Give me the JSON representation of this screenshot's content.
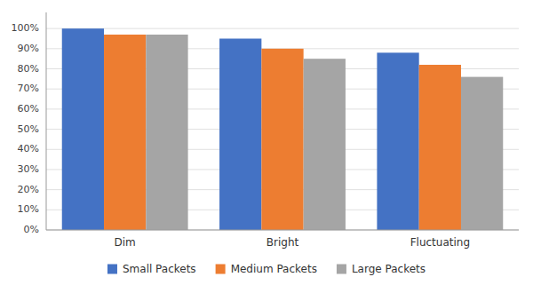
{
  "chart_data": {
    "type": "bar",
    "categories": [
      "Dim",
      "Bright",
      "Fluctuating"
    ],
    "series": [
      {
        "name": "Small Packets",
        "color": "#4472C4",
        "values": [
          1.0,
          0.95,
          0.88
        ]
      },
      {
        "name": "Medium Packets",
        "color": "#ED7D31",
        "values": [
          0.97,
          0.9,
          0.82
        ]
      },
      {
        "name": "Large Packets",
        "color": "#A5A5A5",
        "values": [
          0.97,
          0.85,
          0.76
        ]
      }
    ],
    "ylim": [
      0,
      1.08
    ],
    "yticks": [
      {
        "value": 0.0,
        "label": "0%"
      },
      {
        "value": 0.1,
        "label": "10%"
      },
      {
        "value": 0.2,
        "label": "20%"
      },
      {
        "value": 0.3,
        "label": "30%"
      },
      {
        "value": 0.4,
        "label": "40%"
      },
      {
        "value": 0.5,
        "label": "50%"
      },
      {
        "value": 0.6,
        "label": "60%"
      },
      {
        "value": 0.7,
        "label": "70%"
      },
      {
        "value": 0.8,
        "label": "80%"
      },
      {
        "value": 0.9,
        "label": "90%"
      },
      {
        "value": 1.0,
        "label": "100%"
      }
    ],
    "grid": true,
    "legend": "bottom"
  }
}
